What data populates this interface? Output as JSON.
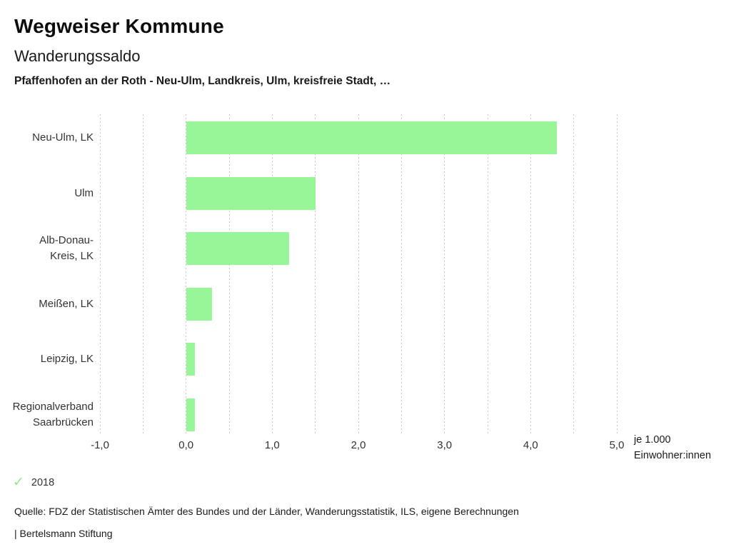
{
  "header": {
    "app_title": "Wegweiser Kommune",
    "chart_title": "Wanderungssaldo",
    "chart_subtitle": "Pfaffenhofen an der Roth - Neu-Ulm, Landkreis, Ulm, kreisfreie Stadt, …"
  },
  "chart_data": {
    "type": "bar",
    "orientation": "horizontal",
    "categories": [
      "Neu-Ulm, LK",
      "Ulm",
      "Alb-Donau-Kreis, LK",
      "Meißen, LK",
      "Leipzig, LK",
      "Regionalverband Saarbrücken"
    ],
    "category_label_lines": [
      [
        "Neu-Ulm, LK"
      ],
      [
        "Ulm"
      ],
      [
        "Alb-Donau-",
        "Kreis, LK"
      ],
      [
        "Meißen, LK"
      ],
      [
        "Leipzig, LK"
      ],
      [
        "Regionalverband",
        "Saarbrücken"
      ]
    ],
    "series": [
      {
        "name": "2018",
        "values": [
          4.3,
          1.5,
          1.2,
          0.3,
          0.1,
          0.1
        ]
      }
    ],
    "xlim": [
      -1.0,
      5.0
    ],
    "x_tick_values": [
      -1,
      0,
      1,
      2,
      3,
      4,
      5
    ],
    "x_tick_labels": [
      "-1,0",
      "0,0",
      "1,0",
      "2,0",
      "3,0",
      "4,0",
      "5,0"
    ],
    "gridline_step": 0.5,
    "grid": true,
    "unit_label_line1": "je 1.000",
    "unit_label_line2": "Einwohner:innen",
    "bar_color": "#99f698",
    "gridline_color": "#c6c6c6",
    "legend_position": "bottom-left"
  },
  "legend": {
    "items": [
      {
        "label": "2018",
        "icon": "check-icon",
        "color": "#8fe88c",
        "active": true
      }
    ]
  },
  "footer": {
    "source": "Quelle: FDZ der Statistischen Ämter des Bundes und der Länder, Wanderungsstatistik, ILS, eigene Berechnungen",
    "attribution": "| Bertelsmann Stiftung"
  }
}
